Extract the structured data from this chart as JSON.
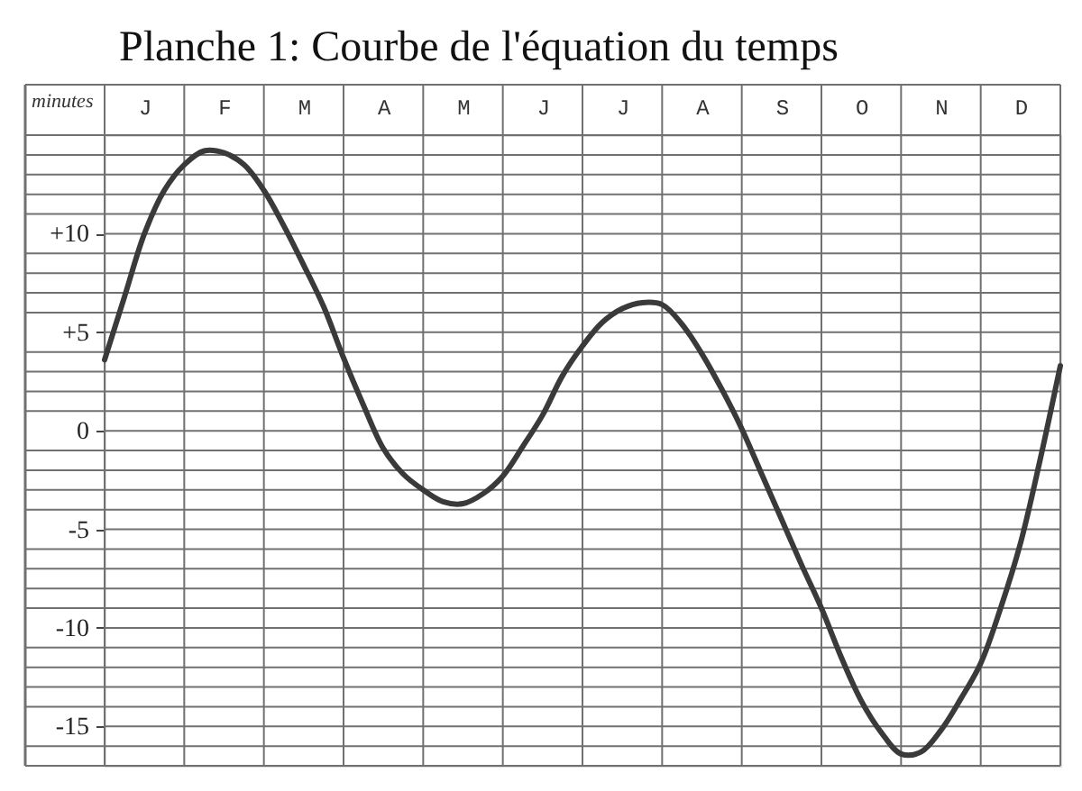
{
  "chart_data": {
    "type": "line",
    "title": "Planche 1: Courbe de l'équation du temps",
    "ylabel": "minutes",
    "categories": [
      null,
      null,
      "J",
      null,
      null,
      null,
      "F",
      null,
      null,
      null,
      "M",
      null,
      null,
      null,
      "A",
      null,
      null,
      null,
      "M",
      null,
      null,
      null,
      "J",
      null,
      null,
      null,
      "J",
      null,
      null,
      null,
      "A",
      null,
      null,
      null,
      "S",
      null,
      null,
      null,
      "O",
      null,
      null,
      null,
      "N",
      null,
      null,
      null,
      "D",
      null,
      null
    ],
    "series": [
      {
        "color": "#3a3a3a",
        "values": [
          3.6,
          6.8,
          10.0,
          12.2,
          13.5,
          14.2,
          14.1,
          13.5,
          12.2,
          10.4,
          8.4,
          6.3,
          3.7,
          1.3,
          -0.9,
          -2.2,
          -3.0,
          -3.6,
          -3.7,
          -3.2,
          -2.3,
          -0.8,
          0.8,
          2.8,
          4.3,
          5.5,
          6.2,
          6.5,
          6.4,
          5.4,
          3.9,
          2.1,
          0.1,
          -2.2,
          -4.5,
          -6.8,
          -9.0,
          -11.5,
          -13.7,
          -15.3,
          -16.4,
          -16.3,
          -15.2,
          -13.6,
          -11.8,
          -9.0,
          -5.7,
          -1.4,
          3.3
        ]
      }
    ],
    "ylim": [
      -17,
      15
    ],
    "yticks": [
      {
        "value": -17,
        "label": null
      },
      {
        "value": -16,
        "label": null
      },
      -15,
      {
        "value": -14,
        "label": null
      },
      {
        "value": -13,
        "label": null
      },
      {
        "value": -12,
        "label": null
      },
      {
        "value": -11,
        "label": null
      },
      -10,
      {
        "value": -9,
        "label": null
      },
      {
        "value": -8,
        "label": null
      },
      {
        "value": -7,
        "label": null
      },
      {
        "value": -6,
        "label": null
      },
      -5,
      {
        "value": -4,
        "label": null
      },
      {
        "value": -3,
        "label": null
      },
      {
        "value": -2,
        "label": null
      },
      {
        "value": -1,
        "label": null
      },
      0,
      {
        "value": 1,
        "label": null
      },
      {
        "value": 2,
        "label": null
      },
      {
        "value": 3,
        "label": null
      },
      {
        "value": 4,
        "label": null
      },
      {
        "value": 5,
        "label": "+5"
      },
      {
        "value": 6,
        "label": null
      },
      {
        "value": 7,
        "label": null
      },
      {
        "value": 8,
        "label": null
      },
      {
        "value": 9,
        "label": null
      },
      {
        "value": 10,
        "label": "+10"
      },
      {
        "value": 11,
        "label": null
      },
      {
        "value": 12,
        "label": null
      },
      {
        "value": 13,
        "label": null
      },
      {
        "value": 14,
        "label": null
      },
      {
        "value": 15,
        "label": null
      }
    ],
    "grid": true
  }
}
